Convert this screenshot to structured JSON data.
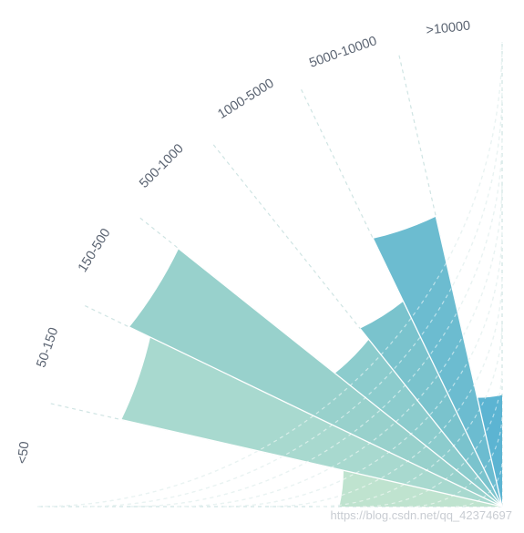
{
  "chart_data": {
    "type": "bar",
    "polar": true,
    "categories": [
      "<50",
      "50-150",
      "150-500",
      "500-1000",
      "1000-5000",
      "5000-10000",
      ">10000"
    ],
    "values": [
      3.5,
      8.4,
      8.9,
      4.6,
      4.9,
      6.4,
      2.4
    ],
    "radius_range": [
      0,
      10
    ],
    "radial_grid_step": 1,
    "grid": true,
    "grid_style": "dashed",
    "colors": [
      "#bfe3cf",
      "#a8d9cf",
      "#98d1cc",
      "#8ccccd",
      "#7ac3cd",
      "#6cbcd0",
      "#5cb4d2"
    ]
  },
  "watermark": "https://blog.csdn.net/qq_42374697"
}
